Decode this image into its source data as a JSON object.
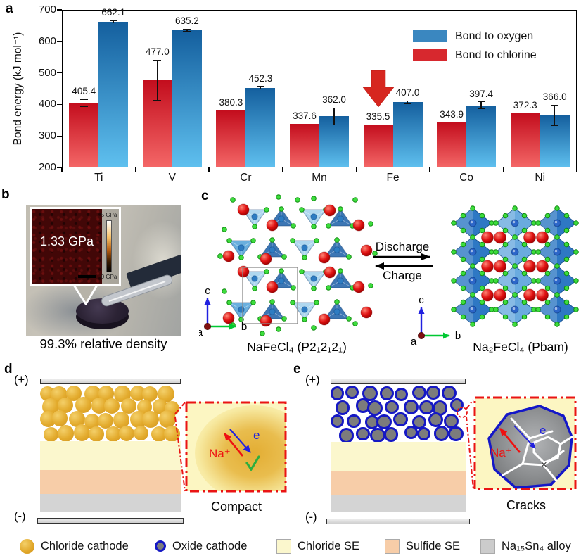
{
  "panels": {
    "a": "a",
    "b": "b",
    "c": "c",
    "d": "d",
    "e": "e"
  },
  "chart_data": {
    "type": "bar",
    "title": "",
    "xlabel": "",
    "ylabel": "Bond energy (kJ mol⁻¹)",
    "ylim": [
      200,
      700
    ],
    "yticks": [
      200,
      300,
      400,
      500,
      600,
      700
    ],
    "categories": [
      "Ti",
      "V",
      "Cr",
      "Mn",
      "Fe",
      "Co",
      "Ni"
    ],
    "series": [
      {
        "name": "Bond to chlorine",
        "values": [
          405.4,
          477.0,
          380.3,
          337.6,
          335.5,
          343.9,
          372.3
        ],
        "errors": [
          11,
          64,
          0,
          0,
          0,
          0,
          0
        ],
        "color_top": "#c30d1d",
        "color_bottom": "#f46767",
        "legend_color": "#d7282e"
      },
      {
        "name": "Bond to oxygen",
        "values": [
          662.1,
          635.2,
          452.3,
          362.0,
          407.0,
          397.4,
          366.0
        ],
        "errors": [
          4,
          4,
          4,
          27,
          4,
          11,
          32
        ],
        "color_top": "#145f9e",
        "color_bottom": "#5fc0ef",
        "legend_color": "#3a87c0"
      }
    ],
    "legend_position": "top-right",
    "annotation": {
      "type": "down-arrow",
      "category": "Fe",
      "series": "Bond to chlorine",
      "color": "#d6261f"
    },
    "grid": false
  },
  "panel_b": {
    "inset_value": "1.33 GPa",
    "scale_top": "5 GPa",
    "scale_bottom": "0 GPa",
    "caption": "99.3% relative density"
  },
  "panel_c": {
    "discharge": "Discharge",
    "charge": "Charge",
    "left_label": "NaFeCl₄ (P2₁2₁2₁)",
    "right_label": "Na₂FeCl₄ (Pbam)",
    "axis_a": "a",
    "axis_b": "b",
    "axis_c": "c"
  },
  "panel_d": {
    "plus": "(+)",
    "minus": "(-)",
    "na_ion": "Na⁺",
    "electron": "e⁻",
    "caption": "Compact"
  },
  "panel_e": {
    "plus": "(+)",
    "minus": "(-)",
    "na_ion": "Na⁺",
    "electron": "e",
    "cross": "×",
    "caption": "Cracks"
  },
  "legend": {
    "items": [
      {
        "label": "Chloride cathode",
        "swatch": "gold-sphere"
      },
      {
        "label": "Oxide cathode",
        "swatch": "oxide-sphere"
      },
      {
        "label": "Chloride SE",
        "swatch": "#fbf7cd"
      },
      {
        "label": "Sulfide SE",
        "swatch": "#f7cda8"
      },
      {
        "label": "Na₁₅Sn₄ alloy",
        "swatch": "#cccccc"
      }
    ]
  }
}
